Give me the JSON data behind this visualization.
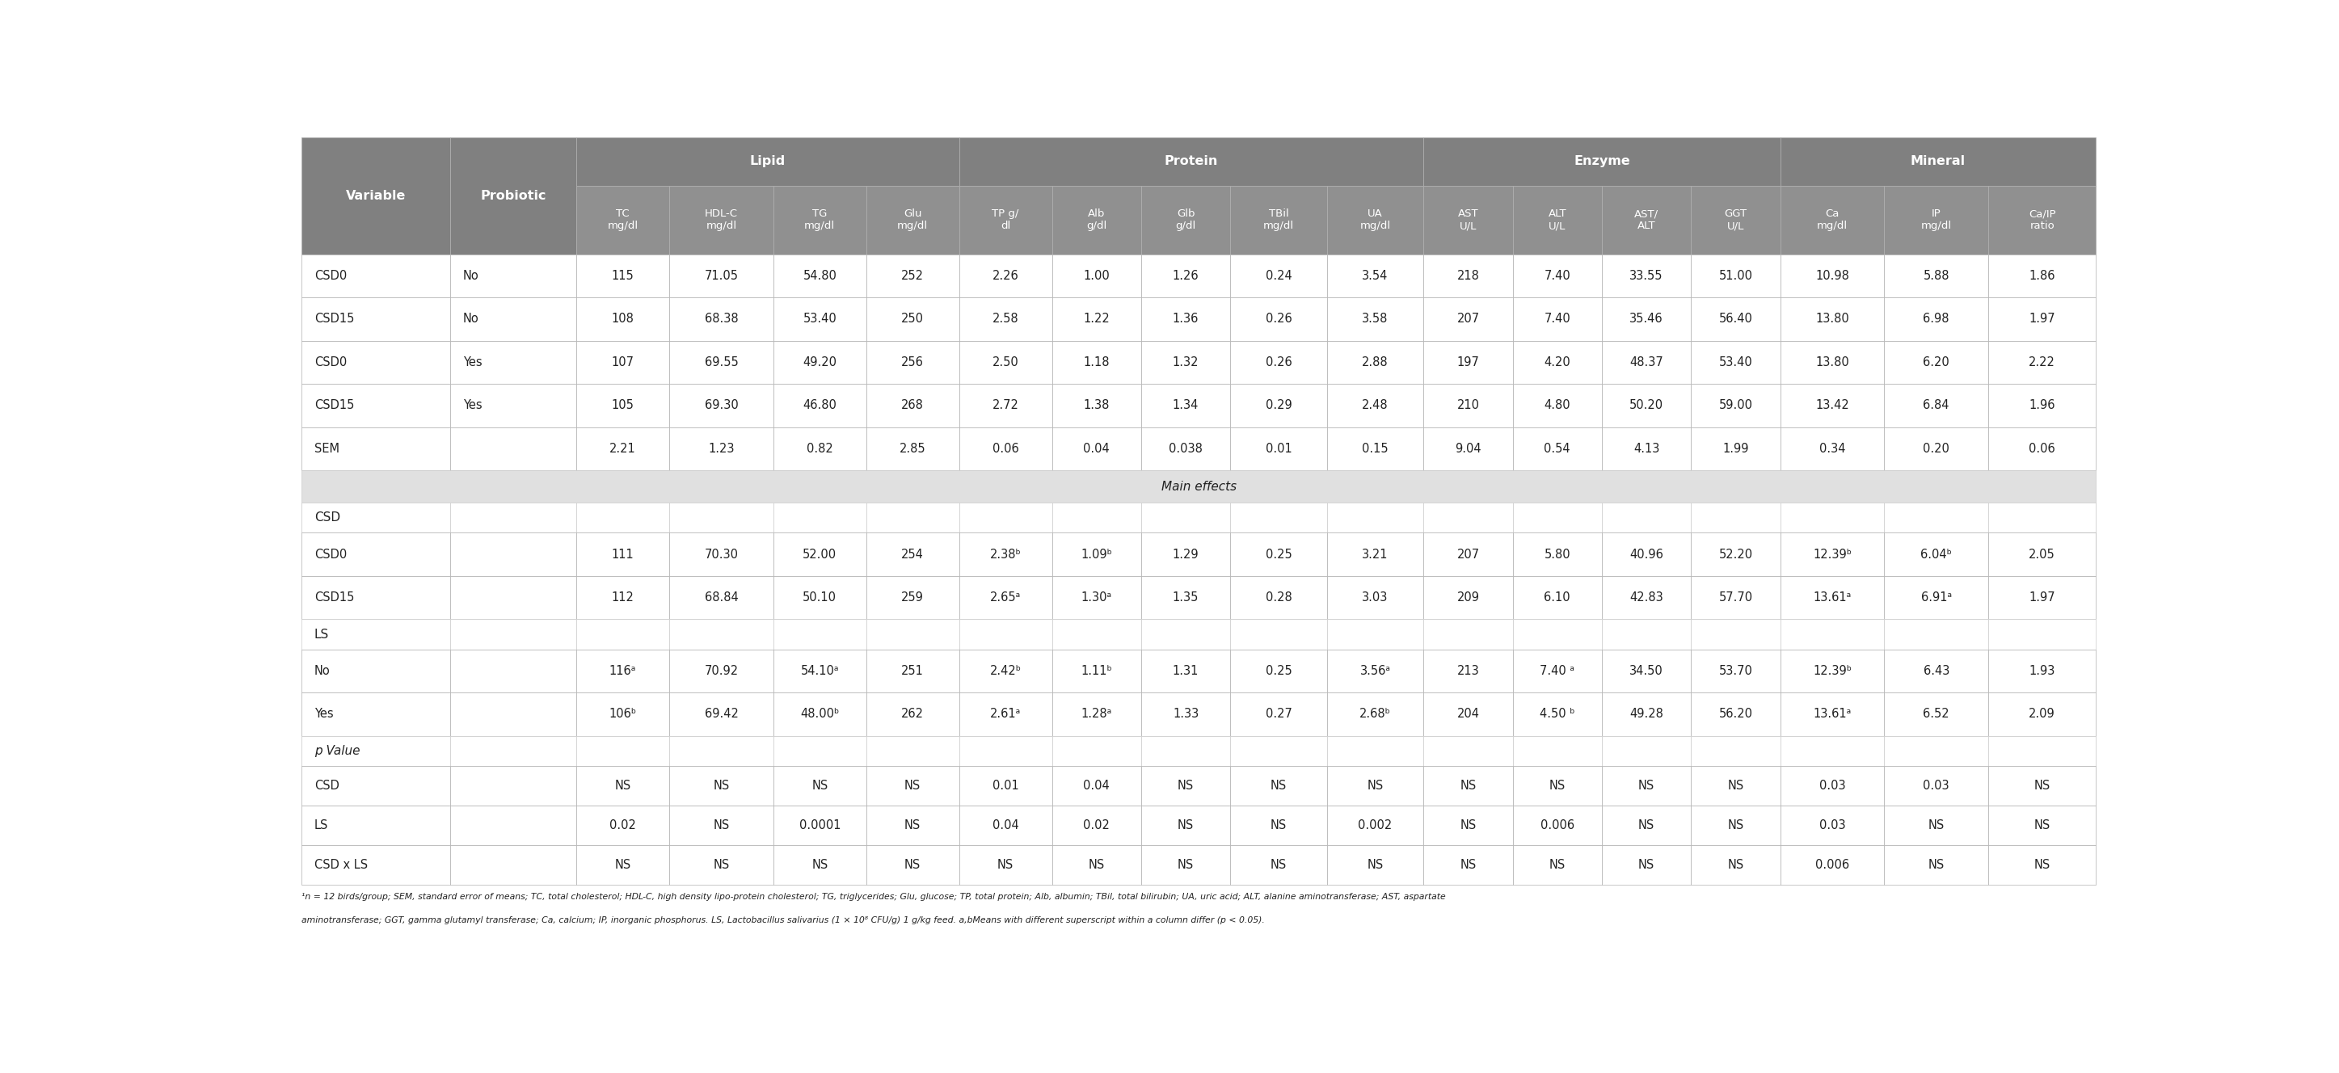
{
  "header_bg": "#808080",
  "header_text": "#ffffff",
  "subheader_bg": "#909090",
  "white_bg": "#ffffff",
  "light_gray_bg": "#e0e0e0",
  "border_color": "#b0b0b0",
  "text_color": "#222222",
  "subheaders": [
    "Variable",
    "Probiotic",
    "TC\nmg/dl",
    "HDL-C\nmg/dl",
    "TG\nmg/dl",
    "Glu\nmg/dl",
    "TP g/\ndl",
    "Alb\ng/dl",
    "Glb\ng/dl",
    "TBil\nmg/dl",
    "UA\nmg/dl",
    "AST\nU/L",
    "ALT\nU/L",
    "AST/\nALT",
    "GGT\nU/L",
    "Ca\nmg/dl",
    "IP\nmg/dl",
    "Ca/IP\nratio"
  ],
  "data_rows": [
    [
      "CSD0",
      "No",
      "115",
      "71.05",
      "54.80",
      "252",
      "2.26",
      "1.00",
      "1.26",
      "0.24",
      "3.54",
      "218",
      "7.40",
      "33.55",
      "51.00",
      "10.98",
      "5.88",
      "1.86"
    ],
    [
      "CSD15",
      "No",
      "108",
      "68.38",
      "53.40",
      "250",
      "2.58",
      "1.22",
      "1.36",
      "0.26",
      "3.58",
      "207",
      "7.40",
      "35.46",
      "56.40",
      "13.80",
      "6.98",
      "1.97"
    ],
    [
      "CSD0",
      "Yes",
      "107",
      "69.55",
      "49.20",
      "256",
      "2.50",
      "1.18",
      "1.32",
      "0.26",
      "2.88",
      "197",
      "4.20",
      "48.37",
      "53.40",
      "13.80",
      "6.20",
      "2.22"
    ],
    [
      "CSD15",
      "Yes",
      "105",
      "69.30",
      "46.80",
      "268",
      "2.72",
      "1.38",
      "1.34",
      "0.29",
      "2.48",
      "210",
      "4.80",
      "50.20",
      "59.00",
      "13.42",
      "6.84",
      "1.96"
    ],
    [
      "SEM",
      "",
      "2.21",
      "1.23",
      "0.82",
      "2.85",
      "0.06",
      "0.04",
      "0.038",
      "0.01",
      "0.15",
      "9.04",
      "0.54",
      "4.13",
      "1.99",
      "0.34",
      "0.20",
      "0.06"
    ]
  ],
  "main_effects_rows": [
    [
      "CSD0",
      "",
      "111",
      "70.30",
      "52.00",
      "254",
      "2.38ᵇ",
      "1.09ᵇ",
      "1.29",
      "0.25",
      "3.21",
      "207",
      "5.80",
      "40.96",
      "52.20",
      "12.39ᵇ",
      "6.04ᵇ",
      "2.05"
    ],
    [
      "CSD15",
      "",
      "112",
      "68.84",
      "50.10",
      "259",
      "2.65ᵃ",
      "1.30ᵃ",
      "1.35",
      "0.28",
      "3.03",
      "209",
      "6.10",
      "42.83",
      "57.70",
      "13.61ᵃ",
      "6.91ᵃ",
      "1.97"
    ],
    [
      "No",
      "",
      "116ᵃ",
      "70.92",
      "54.10ᵃ",
      "251",
      "2.42ᵇ",
      "1.11ᵇ",
      "1.31",
      "0.25",
      "3.56ᵃ",
      "213",
      "7.40 ᵃ",
      "34.50",
      "53.70",
      "12.39ᵇ",
      "6.43",
      "1.93"
    ],
    [
      "Yes",
      "",
      "106ᵇ",
      "69.42",
      "48.00ᵇ",
      "262",
      "2.61ᵃ",
      "1.28ᵃ",
      "1.33",
      "0.27",
      "2.68ᵇ",
      "204",
      "4.50 ᵇ",
      "49.28",
      "56.20",
      "13.61ᵃ",
      "6.52",
      "2.09"
    ]
  ],
  "pvalue_rows": [
    [
      "CSD",
      "",
      "NS",
      "NS",
      "NS",
      "NS",
      "0.01",
      "0.04",
      "NS",
      "NS",
      "NS",
      "NS",
      "NS",
      "NS",
      "NS",
      "0.03",
      "0.03",
      "NS"
    ],
    [
      "LS",
      "",
      "0.02",
      "NS",
      "0.0001",
      "NS",
      "0.04",
      "0.02",
      "NS",
      "NS",
      "0.002",
      "NS",
      "0.006",
      "NS",
      "NS",
      "0.03",
      "NS",
      "NS"
    ],
    [
      "CSD x LS",
      "",
      "NS",
      "NS",
      "NS",
      "NS",
      "NS",
      "NS",
      "NS",
      "NS",
      "NS",
      "NS",
      "NS",
      "NS",
      "NS",
      "0.006",
      "NS",
      "NS"
    ]
  ],
  "footnote_line1": "¹n = 12 birds/group; SEM, standard error of means; TC, total cholesterol; HDL-C, high density lipo-protein cholesterol; TG, triglycerides; Glu, glucose; TP, total protein; Alb, albumin; TBil, total bilirubin; UA, uric acid; ALT, alanine aminotransferase; AST, aspartate",
  "footnote_line2": "aminotransferase; GGT, gamma glutamyl transferase; Ca, calcium; IP, inorganic phosphorus. LS, Lactobacillus salivarius (1 × 10⁸ CFU/g) 1 g/kg feed. a,bMeans with different superscript within a column differ (p < 0.05)."
}
